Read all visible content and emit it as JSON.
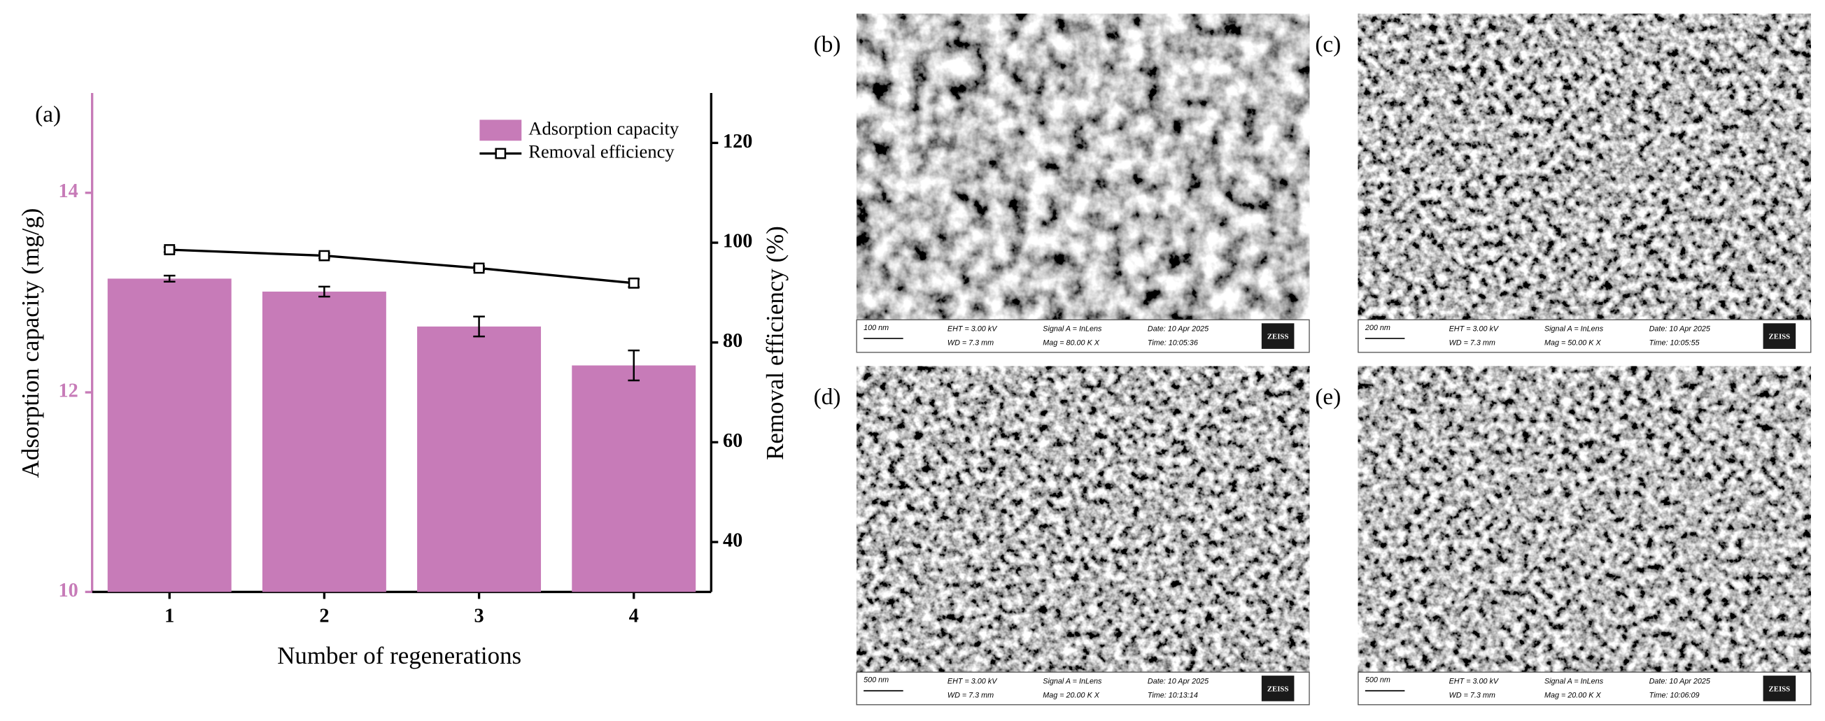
{
  "chart_data": {
    "type": "combo",
    "panel_label": "(a)",
    "x_label": "Number of regenerations",
    "y_label": "Adsorption capacity (mg/g)",
    "y2_label": "Removal efficiency (%)",
    "categories": [
      "1",
      "2",
      "3",
      "4"
    ],
    "series": [
      {
        "name": "Adsorption capacity",
        "type": "bar",
        "color": "#c77bb8",
        "values": [
          13.14,
          13.01,
          12.66,
          12.27
        ],
        "errors": [
          0.03,
          0.05,
          0.1,
          0.15
        ]
      },
      {
        "name": "Removal efficiency",
        "type": "line",
        "axis": "y2",
        "color": "#000000",
        "values": [
          98.6,
          97.4,
          94.9,
          91.9
        ],
        "errors": [
          0.5,
          0.5,
          0.4,
          0.8
        ]
      }
    ],
    "ylim": [
      10,
      15
    ],
    "yticks": [
      10,
      12,
      14
    ],
    "y_axis_color": "#c77bb8",
    "y2lim": [
      30,
      130
    ],
    "y2ticks": [
      40,
      60,
      80,
      100,
      120
    ],
    "legend": "top-right"
  },
  "panels": [
    {
      "label": "(b)",
      "scale": "100 nm",
      "eht": "EHT =  3.00 kV",
      "wd": "WD =  7.3 mm",
      "signal": "Signal A = InLens",
      "mag": "Mag = 80.00 K X",
      "date": "Date: 10 Apr 2025",
      "time": "Time: 10:05:36",
      "logo": "ZEISS"
    },
    {
      "label": "(c)",
      "scale": "200 nm",
      "eht": "EHT =  3.00 kV",
      "wd": "WD =  7.3 mm",
      "signal": "Signal A = InLens",
      "mag": "Mag = 50.00 K X",
      "date": "Date: 10 Apr 2025",
      "time": "Time: 10:05:55",
      "logo": "ZEISS"
    },
    {
      "label": "(d)",
      "scale": "500 nm",
      "eht": "EHT =  3.00 kV",
      "wd": "WD =  7.3 mm",
      "signal": "Signal A = InLens",
      "mag": "Mag = 20.00 K X",
      "date": "Date: 10 Apr 2025",
      "time": "Time: 10:13:14",
      "logo": "ZEISS"
    },
    {
      "label": "(e)",
      "scale": "500 nm",
      "eht": "EHT =  3.00 kV",
      "wd": "WD =  7.3 mm",
      "signal": "Signal A = InLens",
      "mag": "Mag = 20.00 K X",
      "date": "Date: 10 Apr 2025",
      "time": "Time: 10:06:09",
      "logo": "ZEISS"
    }
  ]
}
